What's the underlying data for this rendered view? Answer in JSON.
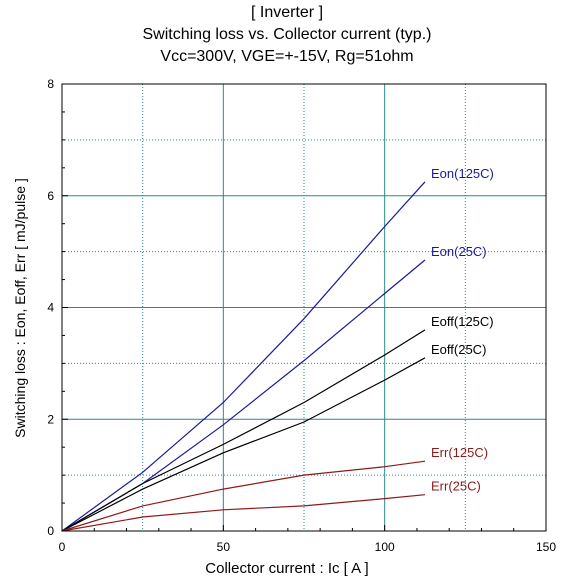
{
  "chart_data": {
    "type": "line",
    "title": [
      "[ Inverter ]",
      "Switching loss  vs.  Collector current  (typ.)",
      "Vcc=300V, VGE=+-15V, Rg=51ohm"
    ],
    "xlabel": "Collector current  :  Ic  [ A ]",
    "ylabel": "Switching loss  :  Eon, Eoff, Err  [ mJ/pulse ]",
    "xlim": [
      0,
      150
    ],
    "ylim": [
      0,
      8
    ],
    "xticks": [
      0,
      50,
      100,
      150
    ],
    "yticks": [
      0,
      2,
      4,
      6,
      8
    ],
    "grid": true,
    "legend": "labels at line ends",
    "series": [
      {
        "name": "Eon(125C)",
        "color": "#1a1a99",
        "x": [
          0,
          25,
          50,
          75,
          100,
          112.5
        ],
        "y": [
          0,
          1.05,
          2.3,
          3.8,
          5.45,
          6.25
        ]
      },
      {
        "name": "Eon(25C)",
        "color": "#1a1a99",
        "x": [
          0,
          25,
          50,
          75,
          100,
          112.5
        ],
        "y": [
          0,
          0.85,
          1.9,
          3.05,
          4.25,
          4.85
        ]
      },
      {
        "name": "Eoff(125C)",
        "color": "#000000",
        "x": [
          0,
          25,
          50,
          75,
          100,
          112.5
        ],
        "y": [
          0,
          0.85,
          1.55,
          2.3,
          3.15,
          3.6
        ]
      },
      {
        "name": "Eoff(25C)",
        "color": "#000000",
        "x": [
          0,
          25,
          50,
          75,
          100,
          112.5
        ],
        "y": [
          0,
          0.75,
          1.4,
          1.95,
          2.7,
          3.1
        ]
      },
      {
        "name": "Err(125C)",
        "color": "#8b1a1a",
        "x": [
          0,
          25,
          50,
          75,
          100,
          112.5
        ],
        "y": [
          0,
          0.45,
          0.75,
          1.0,
          1.15,
          1.25
        ]
      },
      {
        "name": "Err(25C)",
        "color": "#8b1a1a",
        "x": [
          0,
          25,
          50,
          75,
          100,
          112.5
        ],
        "y": [
          0,
          0.25,
          0.38,
          0.45,
          0.58,
          0.65
        ]
      }
    ]
  }
}
